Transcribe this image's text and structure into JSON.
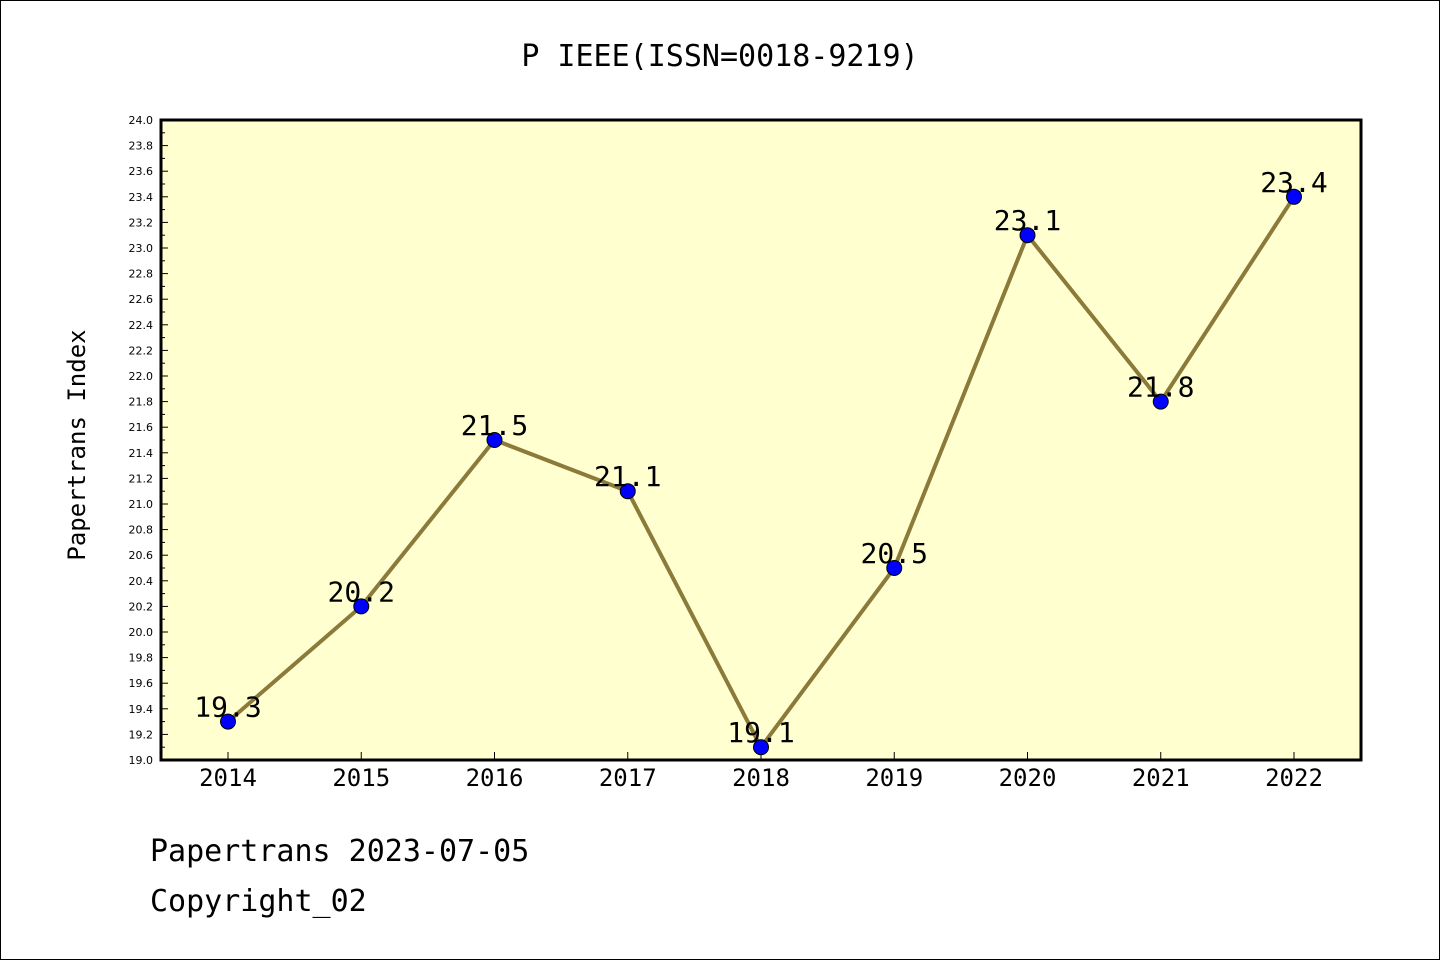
{
  "chart_data": {
    "type": "line",
    "title": "P IEEE(ISSN=0018-9219)",
    "xlabel": "",
    "ylabel": "Papertrans Index",
    "categories": [
      "2014",
      "2015",
      "2016",
      "2017",
      "2018",
      "2019",
      "2020",
      "2021",
      "2022"
    ],
    "series": [
      {
        "values": [
          19.3,
          20.2,
          21.5,
          21.1,
          19.1,
          20.5,
          23.1,
          21.8,
          23.4
        ],
        "labels": [
          "19.3",
          "20.2",
          "21.5",
          "21.1",
          "19.1",
          "20.5",
          "23.1",
          "21.8",
          "23.4"
        ]
      }
    ],
    "ylim": [
      19.0,
      24.0
    ],
    "yticks": [
      "19.0",
      "19.2",
      "19.4",
      "19.6",
      "19.8",
      "20.0",
      "20.2",
      "20.4",
      "20.6",
      "20.8",
      "21.0",
      "21.2",
      "21.4",
      "21.6",
      "21.8",
      "22.0",
      "22.2",
      "22.4",
      "22.6",
      "22.8",
      "23.0",
      "23.2",
      "23.4",
      "23.6",
      "23.8",
      "24.0"
    ],
    "grid": false,
    "line_color": "#8b7a3a",
    "marker_color": "#0000ff",
    "plot_background": "#ffffd0"
  },
  "footer": {
    "line1": "Papertrans 2023-07-05",
    "line2": "Copyright_02"
  }
}
